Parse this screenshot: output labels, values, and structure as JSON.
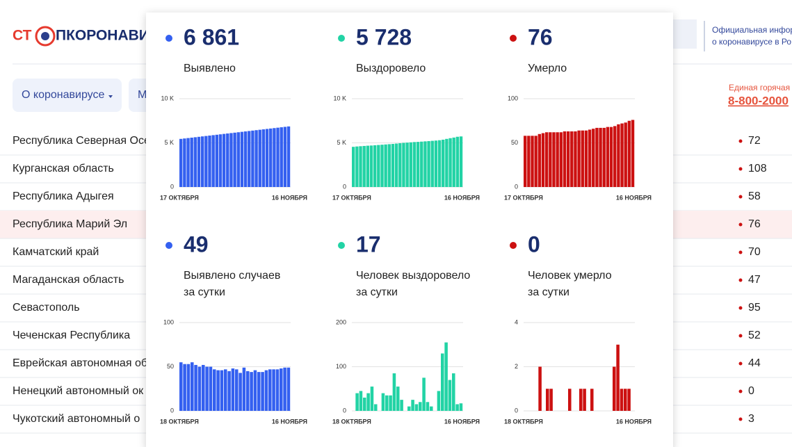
{
  "header": {
    "logo_left": "СТ",
    "logo_right": "ПКОРОНАВИ",
    "gov_line1": "Официальная инфор",
    "gov_line2": "о коронавирусе в Ро"
  },
  "nav": {
    "item1": "О коронавирусе",
    "item2": "М"
  },
  "hotline": {
    "label": "Единая горячая",
    "phone": "8-800-2000"
  },
  "table": {
    "rows": [
      [
        "Республика Северная Осе",
        72
      ],
      [
        "Курганская область",
        108
      ],
      [
        "Республика Адыгея",
        58
      ],
      [
        "Республика Марий Эл",
        76
      ],
      [
        "Камчатский край",
        70
      ],
      [
        "Магаданская область",
        47
      ],
      [
        "Севастополь",
        95
      ],
      [
        "Чеченская Республика",
        52
      ],
      [
        "Еврейская автономная об",
        44
      ],
      [
        "Ненецкий автономный ок",
        0
      ],
      [
        "Чукотский автономный о",
        3
      ]
    ],
    "highlighted_row": 3
  },
  "popup": {
    "panels": [
      {
        "color": "#3460f0",
        "number": {
          "value": 6861,
          "label": "6 861"
        },
        "label": [
          "Выявлено"
        ],
        "chart": {
          "ylim": [
            0,
            10000
          ],
          "yticks": [
            0,
            {
              "value": 5000,
              "label": "5 K"
            },
            {
              "value": 10000,
              "label": "10 K"
            }
          ],
          "first_label": "17 ОКТЯБРЯ",
          "last_label": "16 НОЯБРЯ",
          "values": [
            5450,
            5497,
            5544,
            5591,
            5638,
            5685,
            5732,
            5779,
            5826,
            5873,
            5920,
            5967,
            6014,
            6061,
            6108,
            6155,
            6202,
            6249,
            6296,
            6343,
            6390,
            6437,
            6484,
            6531,
            6578,
            6625,
            6672,
            6719,
            6766,
            6813,
            6861
          ]
        }
      },
      {
        "color": "#22d3a5",
        "number": {
          "value": 5728,
          "label": "5 728"
        },
        "label": [
          "Выздоровело"
        ],
        "chart": {
          "ylim": [
            0,
            10000
          ],
          "yticks": [
            0,
            {
              "value": 5000,
              "label": "5 K"
            },
            {
              "value": 10000,
              "label": "10 K"
            }
          ],
          "first_label": "17 ОКТЯБРЯ",
          "last_label": "16 НОЯБРЯ",
          "values": [
            4550,
            4590,
            4620,
            4650,
            4680,
            4700,
            4730,
            4760,
            4790,
            4820,
            4850,
            4880,
            4920,
            4960,
            5000,
            5030,
            5060,
            5090,
            5110,
            5140,
            5170,
            5200,
            5230,
            5260,
            5300,
            5360,
            5450,
            5530,
            5600,
            5690,
            5728
          ]
        }
      },
      {
        "color": "#cc1111",
        "number": {
          "value": 76,
          "label": "76"
        },
        "label": [
          "Умерло"
        ],
        "chart": {
          "ylim": [
            0,
            100
          ],
          "yticks": [
            0,
            50,
            100
          ],
          "first_label": "17 ОКТЯБРЯ",
          "last_label": "16 НОЯБРЯ",
          "values": [
            58,
            58,
            58,
            58,
            60,
            61,
            62,
            62,
            62,
            62,
            62,
            63,
            63,
            63,
            63,
            64,
            64,
            64,
            65,
            66,
            67,
            67,
            67,
            68,
            68,
            69,
            71,
            72,
            73,
            75,
            76
          ]
        }
      },
      {
        "color": "#3460f0",
        "number": {
          "value": 49,
          "label": "49"
        },
        "label": [
          "Выявлено случаев",
          "за сутки"
        ],
        "chart": {
          "ylim": [
            0,
            100
          ],
          "yticks": [
            0,
            50,
            100
          ],
          "first_label": "18 ОКТЯБРЯ",
          "last_label": "16 НОЯБРЯ",
          "values": [
            55,
            53,
            53,
            55,
            52,
            50,
            52,
            50,
            50,
            47,
            46,
            46,
            47,
            45,
            48,
            47,
            43,
            49,
            45,
            44,
            46,
            44,
            44,
            46,
            47,
            47,
            47,
            48,
            49,
            49
          ]
        }
      },
      {
        "color": "#22d3a5",
        "number": {
          "value": 17,
          "label": "17"
        },
        "label": [
          "Человек выздоровело",
          "за сутки"
        ],
        "chart": {
          "ylim": [
            0,
            200
          ],
          "yticks": [
            0,
            100,
            200
          ],
          "first_label": "18 ОКТЯБРЯ",
          "last_label": "16 НОЯБРЯ",
          "values": [
            0,
            40,
            45,
            30,
            40,
            55,
            15,
            0,
            40,
            35,
            35,
            85,
            55,
            25,
            0,
            10,
            25,
            15,
            20,
            75,
            20,
            10,
            0,
            45,
            130,
            155,
            70,
            85,
            15,
            17
          ]
        }
      },
      {
        "color": "#cc1111",
        "number": {
          "value": 0,
          "label": "0"
        },
        "label": [
          "Человек умерло",
          "за сутки"
        ],
        "chart": {
          "ylim": [
            0,
            4
          ],
          "yticks": [
            0,
            2,
            4
          ],
          "first_label": "18 ОКТЯБРЯ",
          "last_label": "16 НОЯБРЯ",
          "values": [
            0,
            0,
            0,
            0,
            2,
            0,
            1,
            1,
            0,
            0,
            0,
            0,
            1,
            0,
            0,
            1,
            1,
            0,
            1,
            0,
            0,
            0,
            0,
            0,
            2,
            3,
            1,
            1,
            1,
            0
          ]
        }
      }
    ]
  }
}
